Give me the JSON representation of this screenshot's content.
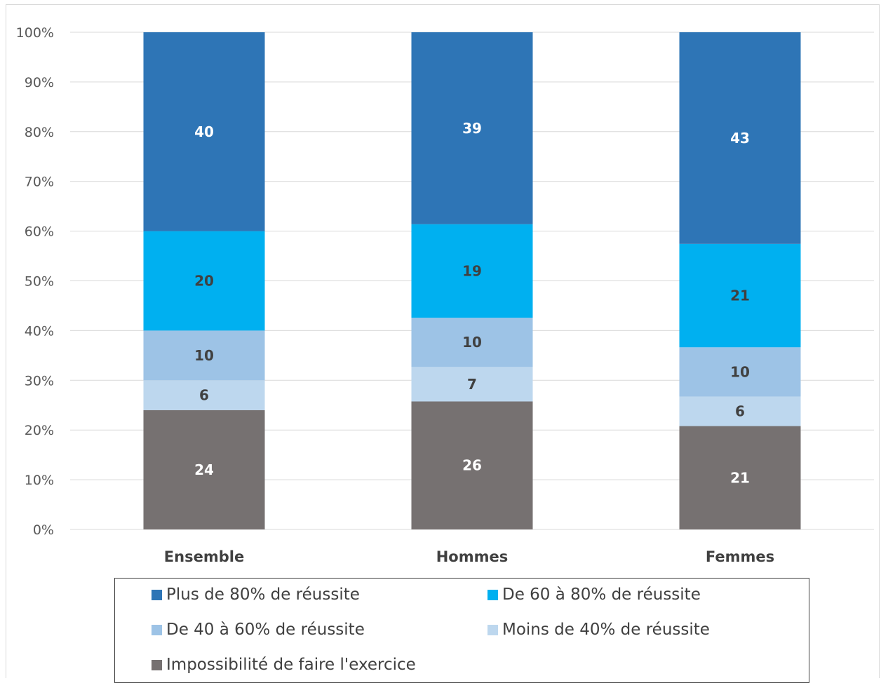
{
  "chart_data": {
    "type": "bar",
    "stacked": true,
    "percent_stacked": true,
    "title": "",
    "xlabel": "",
    "ylabel": "",
    "ylim": [
      0,
      100
    ],
    "y_ticks": [
      "0%",
      "10%",
      "20%",
      "30%",
      "40%",
      "50%",
      "60%",
      "70%",
      "80%",
      "90%",
      "100%"
    ],
    "grid": true,
    "legend_position": "bottom",
    "categories": [
      "Ensemble",
      "Hommes",
      "Femmes"
    ],
    "series": [
      {
        "name": "Impossibilité de faire l'exercice",
        "values": [
          24,
          26,
          21
        ],
        "color": "#767171",
        "label_color": "#ffffff"
      },
      {
        "name": "Moins de 40% de réussite",
        "values": [
          6,
          7,
          6
        ],
        "color": "#bdd7ee",
        "label_color": "#404040"
      },
      {
        "name": "De 40 à 60% de réussite",
        "values": [
          10,
          10,
          10
        ],
        "color": "#9dc3e6",
        "label_color": "#404040"
      },
      {
        "name": "De 60 à 80% de réussite",
        "values": [
          20,
          19,
          21
        ],
        "color": "#00b0f0",
        "label_color": "#404040"
      },
      {
        "name": "Plus de 80% de réussite",
        "values": [
          40,
          39,
          43
        ],
        "color": "#2e75b6",
        "label_color": "#ffffff"
      }
    ],
    "legend_order": [
      4,
      3,
      2,
      1,
      0
    ]
  }
}
